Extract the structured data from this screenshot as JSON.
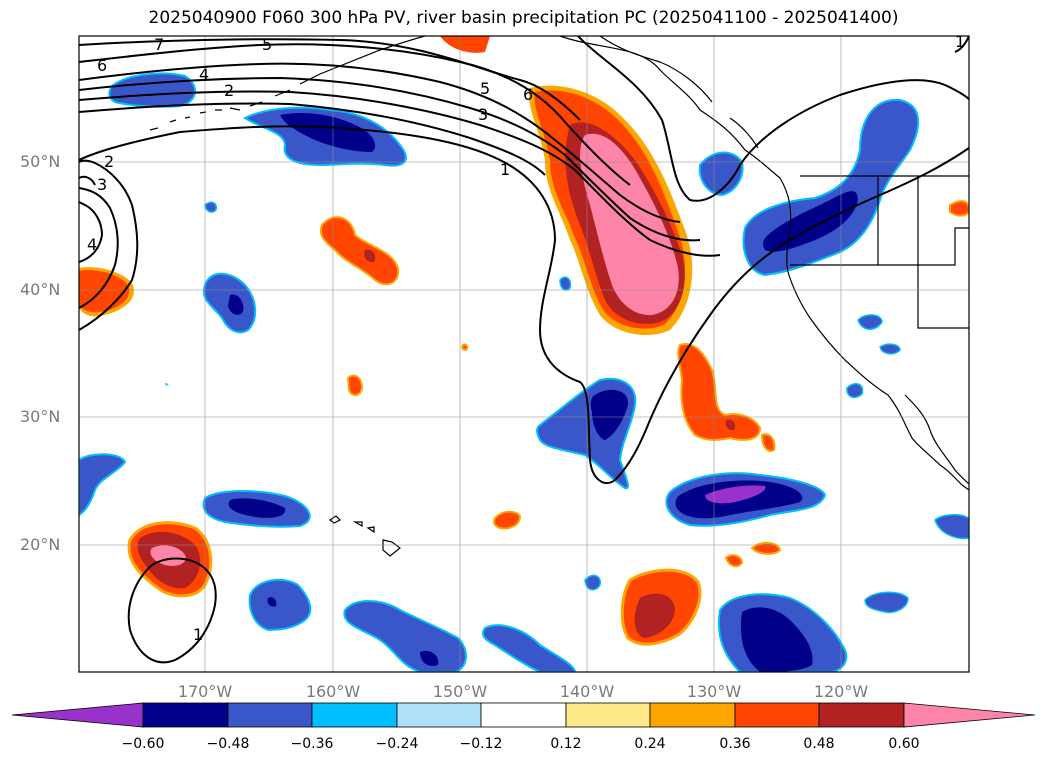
{
  "title": "2025040900 F060 300 hPa PV, river basin precipitation PC (2025041100 - 2025041400)",
  "latitude_labels": [
    "50°N",
    "40°N",
    "30°N",
    "20°N"
  ],
  "longitude_labels": [
    "170°W",
    "160°W",
    "150°W",
    "140°W",
    "130°W",
    "120°W"
  ],
  "pv_contour_labels": [
    "7",
    "6",
    "5",
    "4",
    "3",
    "2",
    "1",
    "2",
    "3",
    "4",
    "5",
    "6",
    "3",
    "1",
    "1",
    "1"
  ],
  "colorbar": {
    "tick_labels": [
      "−0.60",
      "−0.48",
      "−0.36",
      "−0.24",
      "−0.12",
      "0.12",
      "0.24",
      "0.36",
      "0.48",
      "0.60"
    ],
    "colors": [
      "#9932cc",
      "#00008b",
      "#3a57c9",
      "#00bfff",
      "#b0e0fa",
      "#ffffff",
      "#ffe88a",
      "#ffa500",
      "#ff4500",
      "#b22222",
      "#ff85a8"
    ]
  }
}
